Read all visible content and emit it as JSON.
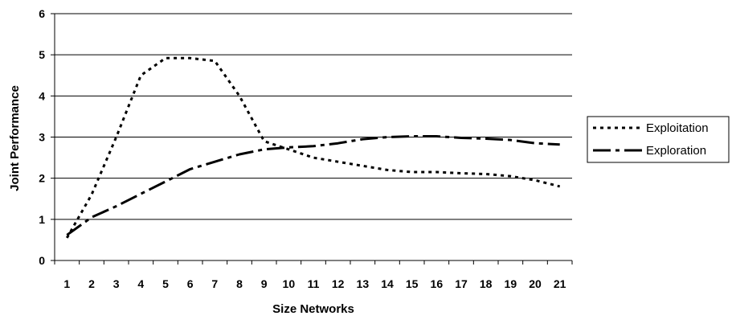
{
  "chart_data": {
    "type": "line",
    "title": "",
    "xlabel": "Size Networks",
    "ylabel": "Joint Performance",
    "categories": [
      "1",
      "2",
      "3",
      "4",
      "5",
      "6",
      "7",
      "8",
      "9",
      "10",
      "11",
      "12",
      "13",
      "14",
      "15",
      "16",
      "17",
      "18",
      "19",
      "20",
      "21"
    ],
    "ylim": [
      0,
      6
    ],
    "yticks": [
      "0",
      "1",
      "2",
      "3",
      "4",
      "5",
      "6"
    ],
    "grid": "horizontal",
    "legend_position": "right",
    "series": [
      {
        "name": "Exploitation",
        "style": "dotted",
        "color": "#000000",
        "values": [
          0.55,
          1.6,
          3.0,
          4.5,
          4.92,
          4.92,
          4.85,
          4.0,
          2.9,
          2.7,
          2.5,
          2.4,
          2.3,
          2.2,
          2.15,
          2.15,
          2.12,
          2.1,
          2.05,
          1.95,
          1.8
        ]
      },
      {
        "name": "Exploration",
        "style": "dash-dot",
        "color": "#000000",
        "values": [
          0.62,
          1.05,
          1.32,
          1.62,
          1.92,
          2.22,
          2.4,
          2.58,
          2.7,
          2.75,
          2.78,
          2.85,
          2.95,
          3.0,
          3.02,
          3.02,
          2.98,
          2.96,
          2.93,
          2.85,
          2.82
        ]
      }
    ]
  }
}
